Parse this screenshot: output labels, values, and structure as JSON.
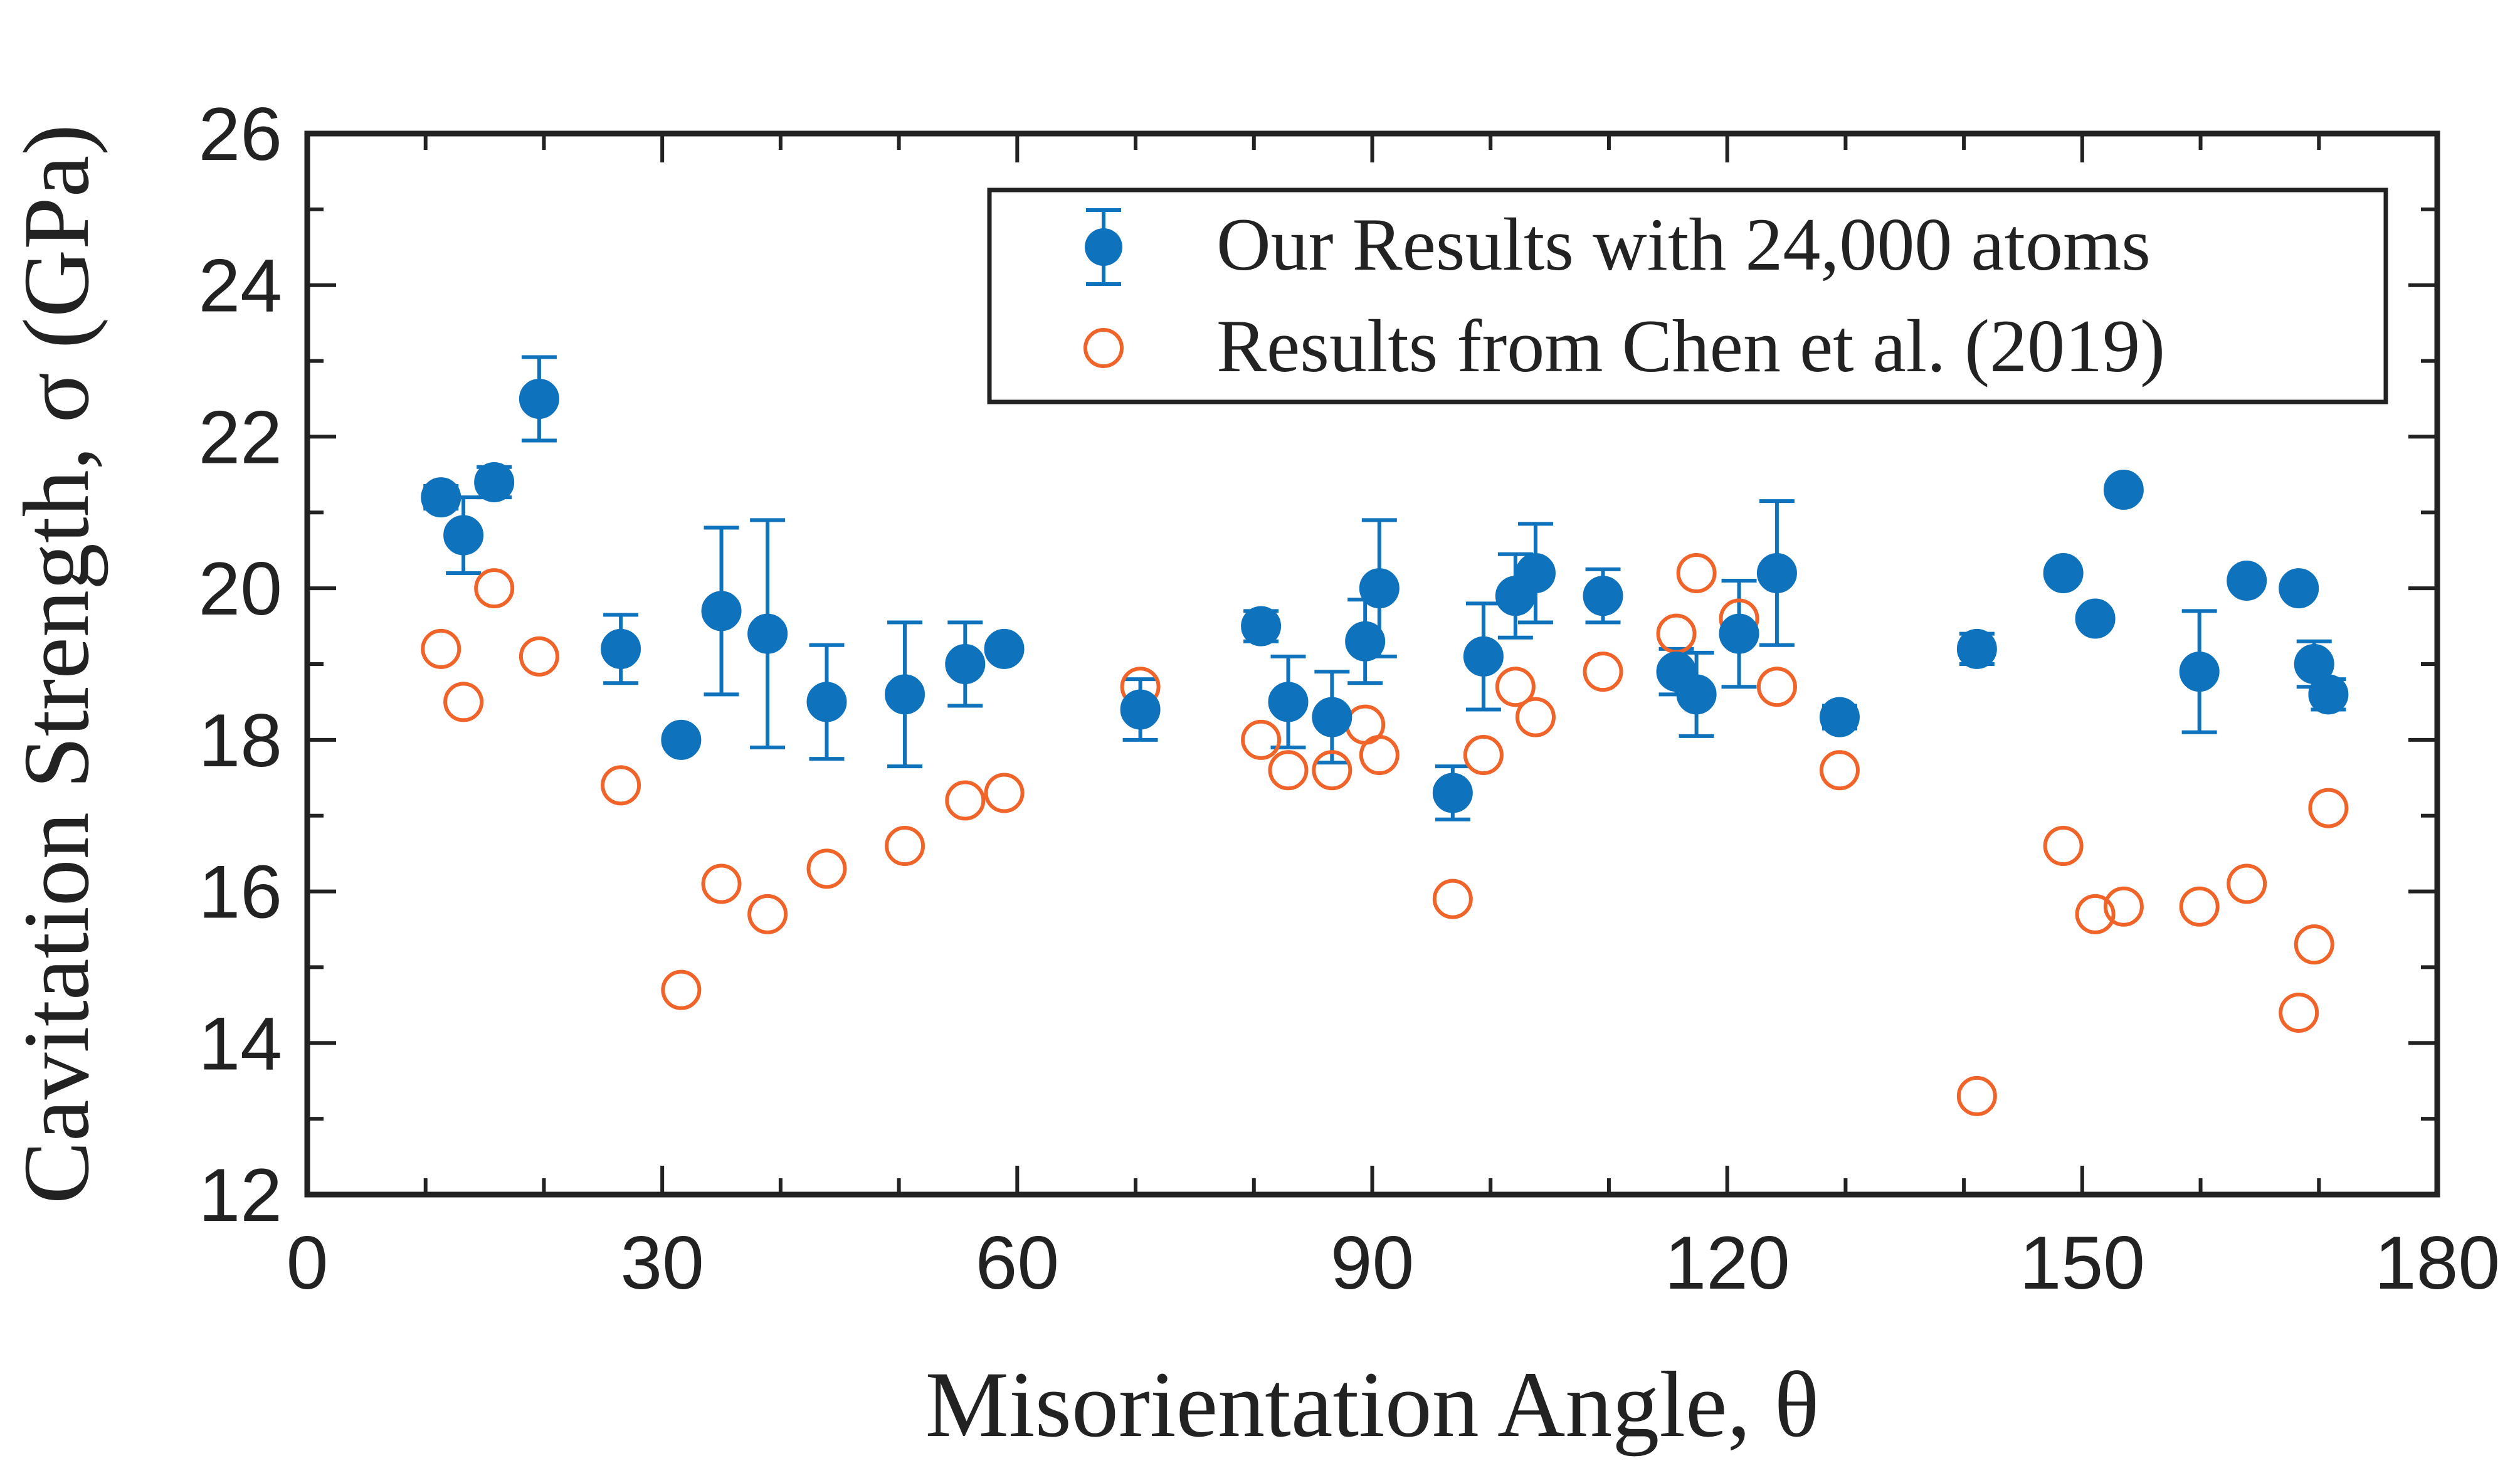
{
  "chart_data": {
    "type": "scatter",
    "title": "",
    "xlabel": "Misorientation Angle, θ",
    "ylabel": "Cavitation Strength, σ (GPa)",
    "xlim": [
      0,
      180
    ],
    "ylim": [
      12,
      26
    ],
    "xticks": [
      0,
      30,
      60,
      90,
      120,
      150,
      180
    ],
    "yticks": [
      12,
      14,
      16,
      18,
      20,
      22,
      24,
      26
    ],
    "grid": false,
    "legend_position": "top-right",
    "colors": {
      "ours": "#0f72bd",
      "chen": "#f0642a",
      "axis": "#222222"
    },
    "series": [
      {
        "name": "Our Results with 24,000 atoms",
        "marker": "filled-circle-with-errorbar",
        "points": [
          {
            "x": 11.3,
            "y": 21.2,
            "err": 0.15
          },
          {
            "x": 13.2,
            "y": 20.7,
            "err": 0.5
          },
          {
            "x": 15.8,
            "y": 21.4,
            "err": 0.2
          },
          {
            "x": 19.6,
            "y": 22.5,
            "err": 0.55
          },
          {
            "x": 26.5,
            "y": 19.2,
            "err": 0.45
          },
          {
            "x": 31.6,
            "y": 18.0,
            "err": 0.1
          },
          {
            "x": 35.0,
            "y": 19.7,
            "err": 1.1
          },
          {
            "x": 38.9,
            "y": 19.4,
            "err": 1.5
          },
          {
            "x": 43.9,
            "y": 18.5,
            "err": 0.75
          },
          {
            "x": 50.5,
            "y": 18.6,
            "err": 0.95
          },
          {
            "x": 55.6,
            "y": 19.0,
            "err": 0.55
          },
          {
            "x": 58.9,
            "y": 19.2,
            "err": 0.1
          },
          {
            "x": 70.4,
            "y": 18.4,
            "err": 0.4
          },
          {
            "x": 80.6,
            "y": 19.5,
            "err": 0.2
          },
          {
            "x": 82.9,
            "y": 18.5,
            "err": 0.6
          },
          {
            "x": 86.6,
            "y": 18.3,
            "err": 0.6
          },
          {
            "x": 89.4,
            "y": 19.3,
            "err": 0.55
          },
          {
            "x": 90.6,
            "y": 20.0,
            "err": 0.9
          },
          {
            "x": 96.8,
            "y": 17.3,
            "err": 0.35
          },
          {
            "x": 99.4,
            "y": 19.1,
            "err": 0.7
          },
          {
            "x": 102.1,
            "y": 19.9,
            "err": 0.55
          },
          {
            "x": 103.8,
            "y": 20.2,
            "err": 0.65
          },
          {
            "x": 109.5,
            "y": 19.9,
            "err": 0.35
          },
          {
            "x": 115.7,
            "y": 18.9,
            "err": 0.3
          },
          {
            "x": 117.4,
            "y": 18.6,
            "err": 0.55
          },
          {
            "x": 121.0,
            "y": 19.4,
            "err": 0.7
          },
          {
            "x": 124.2,
            "y": 20.2,
            "err": 0.95
          },
          {
            "x": 129.5,
            "y": 18.3,
            "err": 0.15
          },
          {
            "x": 141.1,
            "y": 19.2,
            "err": 0.2
          },
          {
            "x": 148.4,
            "y": 20.2,
            "err": 0.1
          },
          {
            "x": 151.1,
            "y": 19.6,
            "err": 0.1
          },
          {
            "x": 153.5,
            "y": 21.3,
            "err": 0.1
          },
          {
            "x": 159.9,
            "y": 18.9,
            "err": 0.8
          },
          {
            "x": 163.9,
            "y": 20.1,
            "err": 0.1
          },
          {
            "x": 168.3,
            "y": 20.0,
            "err": 0.1
          },
          {
            "x": 169.6,
            "y": 19.0,
            "err": 0.3
          },
          {
            "x": 170.8,
            "y": 18.6,
            "err": 0.2
          }
        ]
      },
      {
        "name": "Results from Chen et al. (2019)",
        "marker": "open-circle",
        "points": [
          {
            "x": 11.3,
            "y": 19.2
          },
          {
            "x": 13.2,
            "y": 18.5
          },
          {
            "x": 15.8,
            "y": 20.0
          },
          {
            "x": 19.6,
            "y": 19.1
          },
          {
            "x": 26.5,
            "y": 17.4
          },
          {
            "x": 31.6,
            "y": 14.7
          },
          {
            "x": 35.0,
            "y": 16.1
          },
          {
            "x": 38.9,
            "y": 15.7
          },
          {
            "x": 43.9,
            "y": 16.3
          },
          {
            "x": 50.5,
            "y": 16.6
          },
          {
            "x": 55.6,
            "y": 17.2
          },
          {
            "x": 58.9,
            "y": 17.3
          },
          {
            "x": 70.4,
            "y": 18.7
          },
          {
            "x": 80.6,
            "y": 18.0
          },
          {
            "x": 82.9,
            "y": 17.6
          },
          {
            "x": 86.6,
            "y": 17.6
          },
          {
            "x": 89.4,
            "y": 18.2
          },
          {
            "x": 90.6,
            "y": 17.8
          },
          {
            "x": 96.8,
            "y": 15.9
          },
          {
            "x": 99.4,
            "y": 17.8
          },
          {
            "x": 102.1,
            "y": 18.7
          },
          {
            "x": 103.8,
            "y": 18.3
          },
          {
            "x": 109.5,
            "y": 18.9
          },
          {
            "x": 115.7,
            "y": 19.4
          },
          {
            "x": 117.4,
            "y": 20.2
          },
          {
            "x": 121.0,
            "y": 19.6
          },
          {
            "x": 124.2,
            "y": 18.7
          },
          {
            "x": 129.5,
            "y": 17.6
          },
          {
            "x": 141.1,
            "y": 13.3
          },
          {
            "x": 148.4,
            "y": 16.6
          },
          {
            "x": 151.1,
            "y": 15.7
          },
          {
            "x": 153.5,
            "y": 15.8
          },
          {
            "x": 159.9,
            "y": 15.8
          },
          {
            "x": 163.9,
            "y": 16.1
          },
          {
            "x": 168.3,
            "y": 14.4
          },
          {
            "x": 169.6,
            "y": 15.3
          },
          {
            "x": 170.8,
            "y": 17.1
          }
        ]
      }
    ]
  }
}
